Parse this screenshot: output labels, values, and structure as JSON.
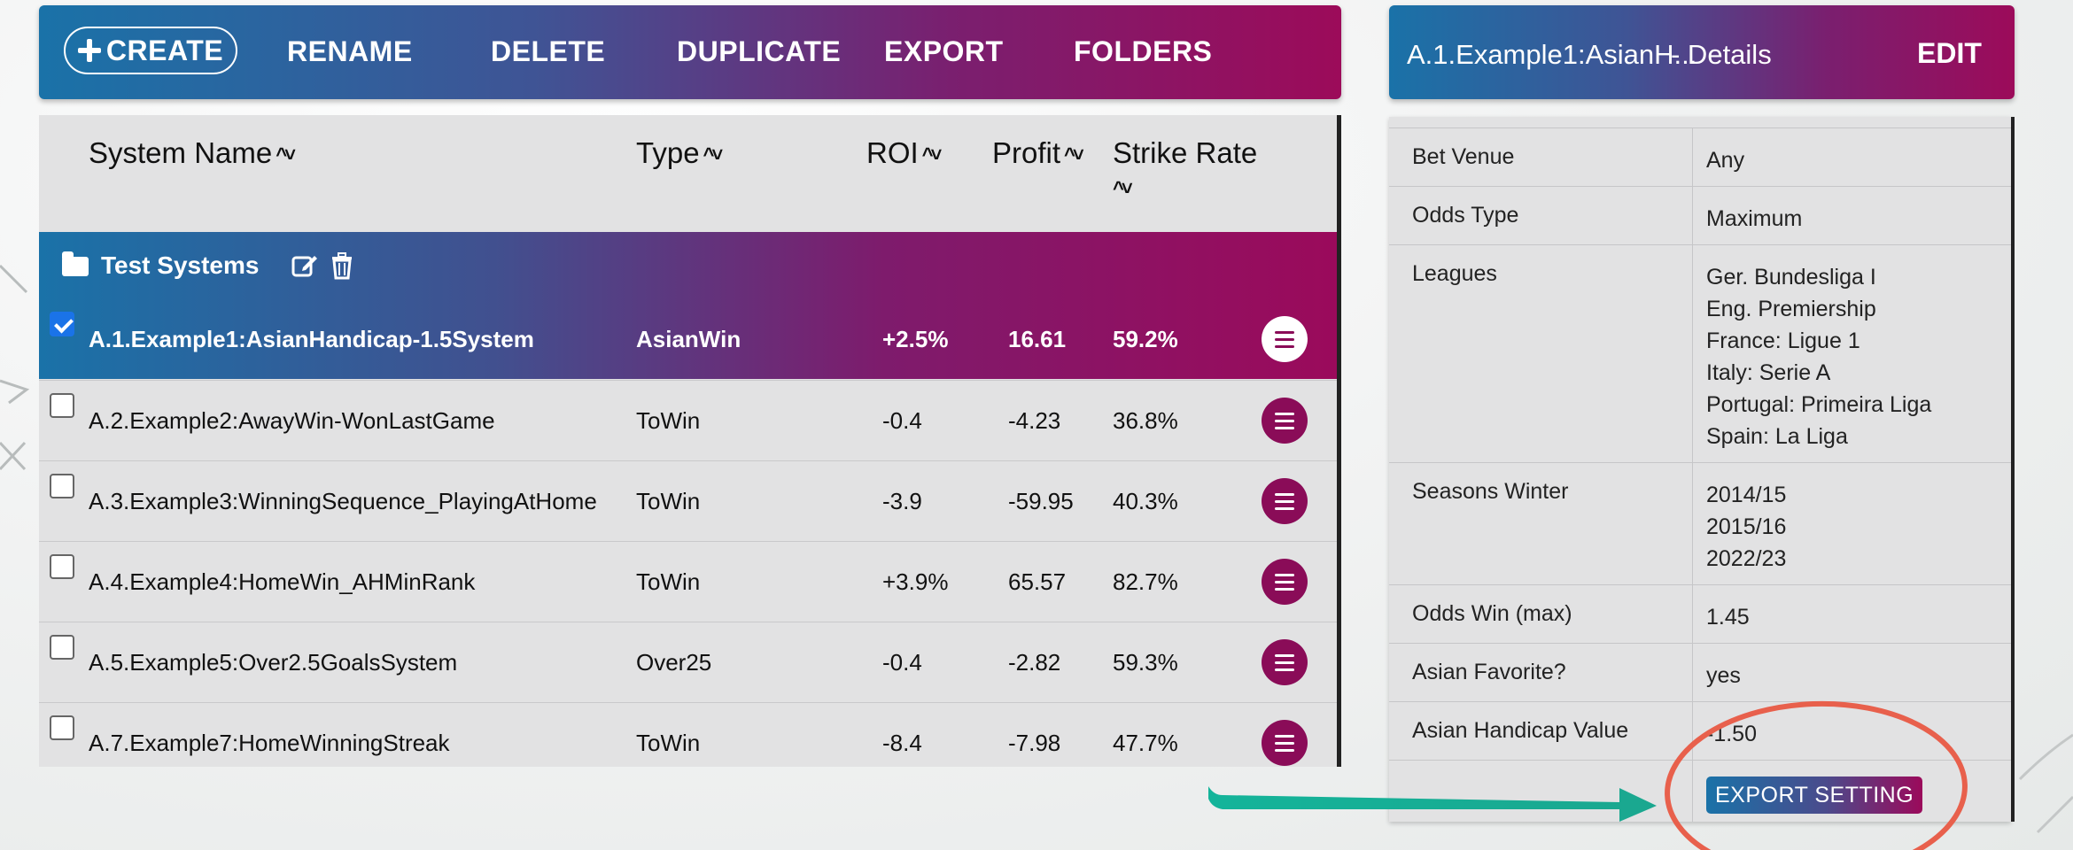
{
  "toolbar": {
    "create": "CREATE",
    "rename": "RENAME",
    "delete": "DELETE",
    "duplicate": "DUPLICATE",
    "export": "EXPORT",
    "folders": "FOLDERS"
  },
  "table": {
    "headers": {
      "system_name": "System Name",
      "type": "Type",
      "roi": "ROI",
      "profit": "Profit",
      "strike_rate": "Strike Rate"
    },
    "folder": {
      "name": "Test Systems"
    },
    "rows": [
      {
        "name": "A.1.Example1:AsianHandicap-1.5System",
        "type": "AsianWin",
        "roi": "+2.5%",
        "profit": "16.61",
        "strike_rate": "59.2%",
        "checked": true
      },
      {
        "name": "A.2.Example2:AwayWin-WonLastGame",
        "type": "ToWin",
        "roi": "-0.4",
        "profit": "-4.23",
        "strike_rate": "36.8%",
        "checked": false
      },
      {
        "name": "A.3.Example3:WinningSequence_PlayingAtHome",
        "type": "ToWin",
        "roi": "-3.9",
        "profit": "-59.95",
        "strike_rate": "40.3%",
        "checked": false
      },
      {
        "name": "A.4.Example4:HomeWin_AHMinRank",
        "type": "ToWin",
        "roi": "+3.9%",
        "profit": "65.57",
        "strike_rate": "82.7%",
        "checked": false
      },
      {
        "name": "A.5.Example5:Over2.5GoalsSystem",
        "type": "Over25",
        "roi": "-0.4",
        "profit": "-2.82",
        "strike_rate": "59.3%",
        "checked": false
      },
      {
        "name": "A.7.Example7:HomeWinningStreak",
        "type": "ToWin",
        "roi": "-8.4",
        "profit": "-7.98",
        "strike_rate": "47.7%",
        "checked": false
      }
    ]
  },
  "details": {
    "title": "A.1.Example1:AsianH...",
    "suffix": "- Details",
    "edit": "EDIT",
    "rows": [
      {
        "label": "Bet Venue",
        "values": [
          "Any"
        ]
      },
      {
        "label": "Odds Type",
        "values": [
          "Maximum"
        ]
      },
      {
        "label": "Leagues",
        "values": [
          "Ger. Bundesliga I",
          "Eng. Premiership",
          "France: Ligue 1",
          "Italy: Serie A",
          "Portugal: Primeira Liga",
          "Spain: La Liga"
        ]
      },
      {
        "label": "Seasons Winter",
        "values": [
          "2014/15",
          "2015/16",
          "2022/23"
        ]
      },
      {
        "label": "Odds Win (max)",
        "values": [
          "1.45"
        ]
      },
      {
        "label": "Asian Favorite?",
        "values": [
          "yes"
        ]
      },
      {
        "label": "Asian Handicap Value",
        "values": [
          "-1.50"
        ]
      }
    ],
    "export_setting": "EXPORT SETTING"
  },
  "colors": {
    "gradient_start": "#1a72a8",
    "gradient_end": "#9c0b5a",
    "menu_button": "#8a0c58",
    "annotation_ellipse": "#e8604c",
    "annotation_arrow": "#14b49a"
  }
}
